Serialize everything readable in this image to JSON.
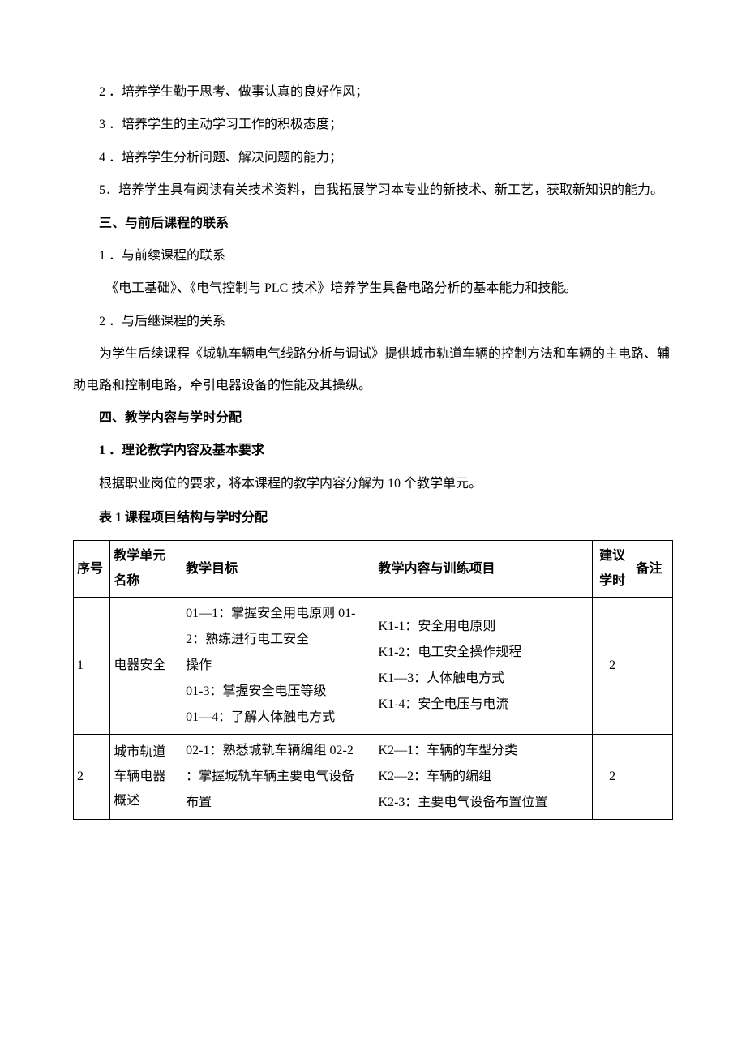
{
  "paragraphs": {
    "p1": "2 ．培养学生勤于思考、做事认真的良好作风；",
    "p2": "3 ．培养学生的主动学习工作的积极态度；",
    "p3": "4 ．培养学生分析问题、解决问题的能力；",
    "p4": "5．培养学生具有阅读有关技术资料，自我拓展学习本专业的新技术、新工艺，获取新知识的能力。",
    "h3": "三、与前后课程的联系",
    "p5": "1 ．与前续课程的联系",
    "p6": "《电工基础》、《电气控制与 PLC 技术》培养学生具备电路分析的基本能力和技能。",
    "p7": "2 ．与后继课程的关系",
    "p8": "为学生后续课程《城轨车辆电气线路分析与调试》提供城市轨道车辆的控制方法和车辆的主电路、辅助电路和控制电路，牵引电器设备的性能及其操纵。",
    "h4": "四、教学内容与学时分配",
    "h4_1": "1 ．理论教学内容及基本要求",
    "p9": "根据职业岗位的要求，将本课程的教学内容分解为 10 个教学单元。",
    "table_caption": "表 1 课程项目结构与学时分配"
  },
  "table": {
    "headers": {
      "seq": "序号",
      "unit": "教学单元名称",
      "goal": "教学目标",
      "content": "教学内容与训练项目",
      "hours": "建议学时",
      "note": "备注"
    },
    "rows": [
      {
        "seq": "1",
        "unit": "电器安全",
        "goal_lines": [
          "01—1：掌握安全用电原则 01-",
          "2：熟练进行电工安全",
          "操作",
          "01-3：掌握安全电压等级",
          "01—4：了解人体触电方式"
        ],
        "content_lines": [
          "K1-1：安全用电原则",
          "K1-2：电工安全操作规程",
          "K1—3：人体触电方式",
          "K1-4：安全电压与电流"
        ],
        "hours": "2",
        "note": ""
      },
      {
        "seq": "2",
        "unit": "城市轨道车辆电器概述",
        "goal_lines": [
          "02-1：熟悉城轨车辆编组 02-2",
          "：掌握城轨车辆主要电气设备",
          "布置"
        ],
        "content_lines": [
          "K2—1：车辆的车型分类",
          "K2—2：车辆的编组",
          "K2-3：主要电气设备布置位置"
        ],
        "hours": "2",
        "note": ""
      }
    ]
  }
}
